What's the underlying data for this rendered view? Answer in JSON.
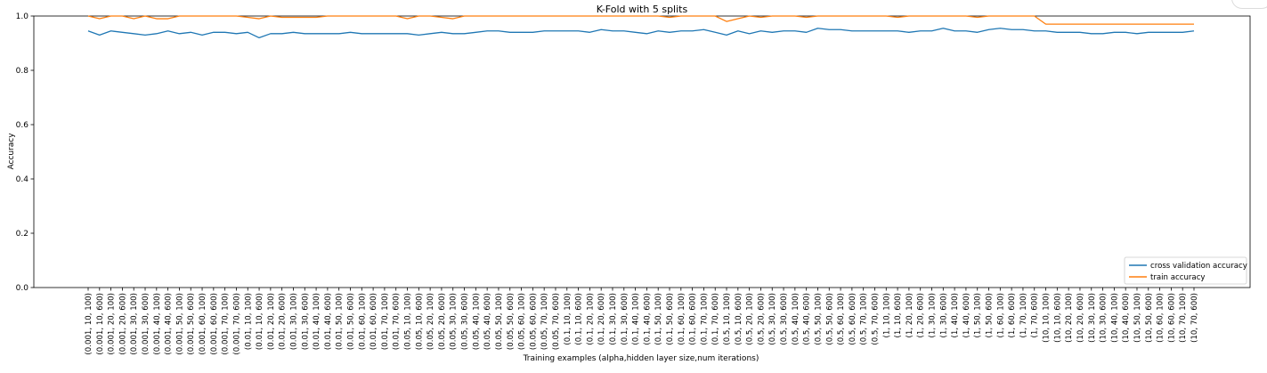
{
  "chart_data": {
    "type": "line",
    "title": "K-Fold with 5 splits",
    "xlabel": "Training examples (alpha,hidden layer size,num iterations)",
    "ylabel": "Accuracy",
    "ylim": [
      0.0,
      1.0
    ],
    "yticks": [
      "0.0",
      "0.2",
      "0.4",
      "0.6",
      "0.8",
      "1.0"
    ],
    "grid": false,
    "legend_location": "lower-right",
    "categories": [
      "(0.001, 10, 100)",
      "(0.001, 10, 600)",
      "(0.001, 20, 100)",
      "(0.001, 20, 600)",
      "(0.001, 30, 100)",
      "(0.001, 30, 600)",
      "(0.001, 40, 100)",
      "(0.001, 40, 600)",
      "(0.001, 50, 100)",
      "(0.001, 50, 600)",
      "(0.001, 60, 100)",
      "(0.001, 60, 600)",
      "(0.001, 70, 100)",
      "(0.001, 70, 600)",
      "(0.01, 10, 100)",
      "(0.01, 10, 600)",
      "(0.01, 20, 100)",
      "(0.01, 20, 600)",
      "(0.01, 30, 100)",
      "(0.01, 30, 600)",
      "(0.01, 40, 100)",
      "(0.01, 40, 600)",
      "(0.01, 50, 100)",
      "(0.01, 50, 600)",
      "(0.01, 60, 100)",
      "(0.01, 60, 600)",
      "(0.01, 70, 100)",
      "(0.01, 70, 600)",
      "(0.05, 10, 100)",
      "(0.05, 10, 600)",
      "(0.05, 20, 100)",
      "(0.05, 20, 600)",
      "(0.05, 30, 100)",
      "(0.05, 30, 600)",
      "(0.05, 40, 100)",
      "(0.05, 40, 600)",
      "(0.05, 50, 100)",
      "(0.05, 50, 600)",
      "(0.05, 60, 100)",
      "(0.05, 60, 600)",
      "(0.05, 70, 100)",
      "(0.05, 70, 600)",
      "(0.1, 10, 100)",
      "(0.1, 10, 600)",
      "(0.1, 20, 100)",
      "(0.1, 20, 600)",
      "(0.1, 30, 100)",
      "(0.1, 30, 600)",
      "(0.1, 40, 100)",
      "(0.1, 40, 600)",
      "(0.1, 50, 100)",
      "(0.1, 50, 600)",
      "(0.1, 60, 100)",
      "(0.1, 60, 600)",
      "(0.1, 70, 100)",
      "(0.1, 70, 600)",
      "(0.5, 10, 100)",
      "(0.5, 10, 600)",
      "(0.5, 20, 100)",
      "(0.5, 20, 600)",
      "(0.5, 30, 100)",
      "(0.5, 30, 600)",
      "(0.5, 40, 100)",
      "(0.5, 40, 600)",
      "(0.5, 50, 100)",
      "(0.5, 50, 600)",
      "(0.5, 60, 100)",
      "(0.5, 60, 600)",
      "(0.5, 70, 100)",
      "(0.5, 70, 600)",
      "(1, 10, 100)",
      "(1, 10, 600)",
      "(1, 20, 100)",
      "(1, 20, 600)",
      "(1, 30, 100)",
      "(1, 30, 600)",
      "(1, 40, 100)",
      "(1, 40, 600)",
      "(1, 50, 100)",
      "(1, 50, 600)",
      "(1, 60, 100)",
      "(1, 60, 600)",
      "(1, 70, 100)",
      "(1, 70, 600)",
      "(10, 10, 100)",
      "(10, 10, 600)",
      "(10, 20, 100)",
      "(10, 20, 600)",
      "(10, 30, 100)",
      "(10, 30, 600)",
      "(10, 40, 100)",
      "(10, 40, 600)",
      "(10, 50, 100)",
      "(10, 50, 600)",
      "(10, 60, 100)",
      "(10, 60, 600)",
      "(10, 70, 100)",
      "(10, 70, 600)"
    ],
    "series": [
      {
        "name": "cross validation accuracy",
        "color": "#1f77b4",
        "values": [
          0.945,
          0.93,
          0.945,
          0.94,
          0.935,
          0.93,
          0.935,
          0.945,
          0.935,
          0.94,
          0.93,
          0.94,
          0.94,
          0.935,
          0.94,
          0.92,
          0.935,
          0.935,
          0.94,
          0.935,
          0.935,
          0.935,
          0.935,
          0.94,
          0.935,
          0.935,
          0.935,
          0.935,
          0.935,
          0.93,
          0.935,
          0.94,
          0.935,
          0.935,
          0.94,
          0.945,
          0.945,
          0.94,
          0.94,
          0.94,
          0.945,
          0.945,
          0.945,
          0.945,
          0.94,
          0.95,
          0.945,
          0.945,
          0.94,
          0.935,
          0.945,
          0.94,
          0.945,
          0.945,
          0.95,
          0.94,
          0.93,
          0.945,
          0.935,
          0.945,
          0.94,
          0.945,
          0.945,
          0.94,
          0.955,
          0.95,
          0.95,
          0.945,
          0.945,
          0.945,
          0.945,
          0.945,
          0.94,
          0.945,
          0.945,
          0.955,
          0.945,
          0.945,
          0.94,
          0.95,
          0.955,
          0.95,
          0.95,
          0.945,
          0.945,
          0.94,
          0.94,
          0.94,
          0.935,
          0.935,
          0.94,
          0.94,
          0.935,
          0.94,
          0.94,
          0.94,
          0.94,
          0.945
        ]
      },
      {
        "name": "train accuracy",
        "color": "#ff7f0e",
        "values": [
          1.0,
          0.99,
          1.0,
          1.0,
          0.99,
          1.0,
          0.99,
          0.99,
          1.0,
          1.0,
          1.0,
          1.0,
          1.0,
          1.0,
          0.995,
          0.99,
          1.0,
          0.995,
          0.995,
          0.995,
          0.995,
          1.0,
          1.0,
          1.0,
          1.0,
          1.0,
          1.0,
          1.0,
          0.99,
          1.0,
          1.0,
          0.995,
          0.99,
          1.0,
          1.0,
          1.0,
          1.0,
          1.0,
          1.0,
          1.0,
          1.0,
          1.0,
          1.0,
          1.0,
          1.0,
          1.0,
          1.0,
          1.0,
          1.0,
          1.0,
          1.0,
          0.995,
          1.0,
          1.0,
          1.0,
          1.0,
          0.98,
          0.99,
          1.0,
          0.995,
          1.0,
          1.0,
          1.0,
          0.995,
          1.0,
          1.0,
          1.0,
          1.0,
          1.0,
          1.0,
          1.0,
          0.995,
          1.0,
          1.0,
          1.0,
          1.0,
          1.0,
          1.0,
          0.995,
          1.0,
          1.0,
          1.0,
          1.0,
          1.0,
          0.97,
          0.97,
          0.97,
          0.97,
          0.97,
          0.97,
          0.97,
          0.97,
          0.97,
          0.97,
          0.97,
          0.97,
          0.97,
          0.97
        ]
      }
    ]
  }
}
